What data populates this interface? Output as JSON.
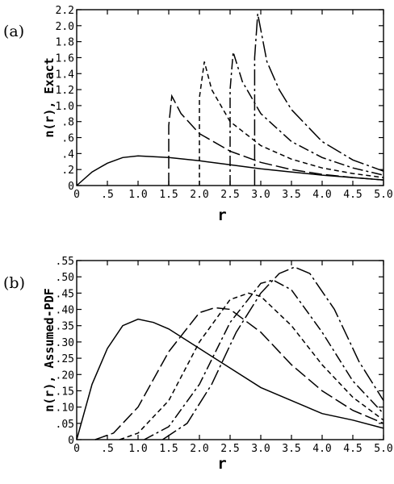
{
  "chart_data": [
    {
      "type": "line",
      "panel_label": "(a)",
      "xlabel": "r",
      "ylabel": "n(r), Exact",
      "xlim": [
        0,
        5
      ],
      "ylim": [
        0,
        2.2
      ],
      "xticks": [
        0,
        0.5,
        1.0,
        1.5,
        2.0,
        2.5,
        3.0,
        3.5,
        4.0,
        4.5,
        5.0
      ],
      "xtick_labels": [
        "0",
        ".5",
        "1.0",
        "1.5",
        "2.0",
        "2.5",
        "3.0",
        "3.5",
        "4.0",
        "4.5",
        "5.0"
      ],
      "yticks": [
        0,
        0.2,
        0.4,
        0.6,
        0.8,
        1.0,
        1.2,
        1.4,
        1.6,
        1.8,
        2.0,
        2.2
      ],
      "ytick_labels": [
        "0",
        ".2",
        ".4",
        ".6",
        ".8",
        "1.0",
        "1.2",
        "1.4",
        "1.6",
        "1.8",
        "2.0",
        "2.2"
      ],
      "grid": false,
      "legend": false,
      "series": [
        {
          "style": "solid",
          "x": [
            0,
            0.25,
            0.5,
            0.75,
            1.0,
            1.5,
            2.0,
            2.5,
            3.0,
            3.5,
            4.0,
            4.5,
            5.0
          ],
          "y": [
            0,
            0.17,
            0.28,
            0.35,
            0.37,
            0.35,
            0.31,
            0.26,
            0.21,
            0.17,
            0.13,
            0.1,
            0.07
          ]
        },
        {
          "style": "long-dash",
          "x": [
            1.5,
            1.5,
            1.55,
            1.7,
            2.0,
            2.5,
            3.0,
            3.5,
            4.0,
            4.5,
            5.0
          ],
          "y": [
            0,
            0.75,
            1.12,
            0.9,
            0.65,
            0.43,
            0.29,
            0.2,
            0.14,
            0.1,
            0.07
          ]
        },
        {
          "style": "short-dash",
          "x": [
            2.0,
            2.0,
            2.08,
            2.2,
            2.5,
            3.0,
            3.5,
            4.0,
            4.5,
            5.0
          ],
          "y": [
            0,
            1.1,
            1.55,
            1.2,
            0.8,
            0.5,
            0.33,
            0.22,
            0.15,
            0.1
          ]
        },
        {
          "style": "dash-dot",
          "x": [
            2.5,
            2.5,
            2.55,
            2.7,
            3.0,
            3.5,
            4.0,
            4.5,
            5.0
          ],
          "y": [
            0,
            1.2,
            1.67,
            1.3,
            0.9,
            0.55,
            0.35,
            0.22,
            0.13
          ]
        },
        {
          "style": "long-dash-dot",
          "x": [
            2.9,
            2.9,
            2.95,
            3.1,
            3.3,
            3.5,
            4.0,
            4.5,
            5.0
          ],
          "y": [
            0,
            1.6,
            2.15,
            1.55,
            1.2,
            0.95,
            0.55,
            0.32,
            0.18
          ]
        }
      ]
    },
    {
      "type": "line",
      "panel_label": "(b)",
      "xlabel": "r",
      "ylabel": "n(r), Assumed-PDF",
      "xlim": [
        0,
        5
      ],
      "ylim": [
        0,
        0.55
      ],
      "xticks": [
        0,
        0.5,
        1.0,
        1.5,
        2.0,
        2.5,
        3.0,
        3.5,
        4.0,
        4.5,
        5.0
      ],
      "xtick_labels": [
        "0",
        ".5",
        "1.0",
        "1.5",
        "2.0",
        "2.5",
        "3.0",
        "3.5",
        "4.0",
        "4.5",
        "5.0"
      ],
      "yticks": [
        0,
        0.05,
        0.1,
        0.15,
        0.2,
        0.25,
        0.3,
        0.35,
        0.4,
        0.45,
        0.5,
        0.55
      ],
      "ytick_labels": [
        "0",
        ".05",
        ".10",
        ".15",
        ".20",
        ".25",
        ".30",
        ".35",
        ".40",
        ".45",
        ".50",
        ".55"
      ],
      "grid": false,
      "legend": false,
      "series": [
        {
          "style": "solid",
          "x": [
            0,
            0.25,
            0.5,
            0.75,
            1.0,
            1.25,
            1.5,
            2.0,
            2.5,
            3.0,
            3.5,
            4.0,
            4.5,
            5.0
          ],
          "y": [
            0,
            0.17,
            0.28,
            0.35,
            0.37,
            0.36,
            0.34,
            0.28,
            0.22,
            0.16,
            0.12,
            0.08,
            0.06,
            0.035
          ]
        },
        {
          "style": "long-dash",
          "x": [
            0.3,
            0.6,
            1.0,
            1.5,
            2.0,
            2.25,
            2.5,
            3.0,
            3.5,
            4.0,
            4.5,
            5.0
          ],
          "y": [
            0,
            0.02,
            0.1,
            0.27,
            0.39,
            0.405,
            0.4,
            0.33,
            0.23,
            0.15,
            0.09,
            0.05
          ]
        },
        {
          "style": "short-dash",
          "x": [
            0.7,
            1.0,
            1.5,
            2.0,
            2.5,
            2.8,
            3.0,
            3.5,
            4.0,
            4.5,
            5.0
          ],
          "y": [
            0,
            0.02,
            0.12,
            0.3,
            0.43,
            0.45,
            0.44,
            0.35,
            0.23,
            0.13,
            0.06
          ]
        },
        {
          "style": "dash-dot",
          "x": [
            1.1,
            1.5,
            2.0,
            2.5,
            3.0,
            3.2,
            3.5,
            4.0,
            4.5,
            5.0
          ],
          "y": [
            0,
            0.04,
            0.17,
            0.36,
            0.48,
            0.49,
            0.46,
            0.33,
            0.18,
            0.08
          ]
        },
        {
          "style": "long-dash-dot",
          "x": [
            1.4,
            1.8,
            2.2,
            2.6,
            3.0,
            3.3,
            3.55,
            3.8,
            4.2,
            4.6,
            5.0
          ],
          "y": [
            0,
            0.05,
            0.17,
            0.33,
            0.45,
            0.51,
            0.53,
            0.51,
            0.4,
            0.24,
            0.12
          ]
        }
      ]
    }
  ]
}
